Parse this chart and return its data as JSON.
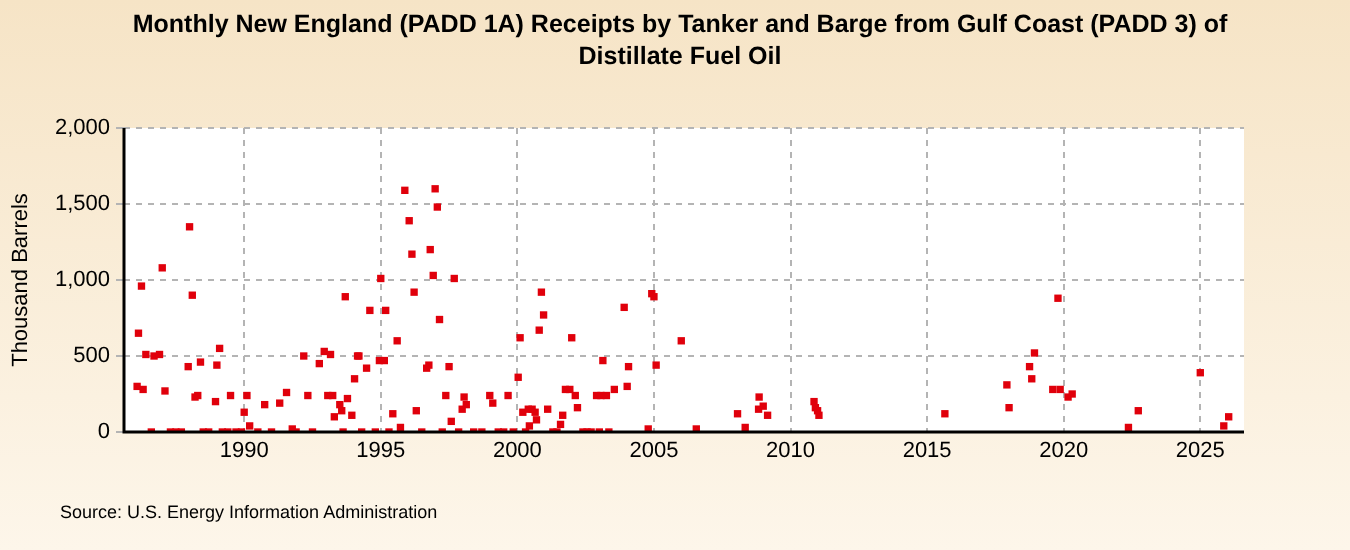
{
  "chart_data": {
    "type": "scatter",
    "title": "Monthly New England (PADD 1A) Receipts by Tanker and Barge from Gulf Coast (PADD 3) of Distillate Fuel Oil",
    "ylabel": "Thousand Barrels",
    "annotations": [
      "Source: U.S. Energy Information Administration"
    ],
    "series": [
      {
        "color": "#e0000b",
        "x": [
          1986.08,
          1986.13,
          1986.24,
          1986.3,
          1986.4,
          1986.6,
          1986.7,
          1986.9,
          1987.0,
          1987.1,
          1987.3,
          1987.5,
          1987.7,
          1987.95,
          1988.0,
          1988.1,
          1988.2,
          1988.3,
          1988.4,
          1988.5,
          1988.7,
          1988.95,
          1989.0,
          1989.1,
          1989.2,
          1989.4,
          1989.5,
          1989.7,
          1989.9,
          1990.0,
          1990.1,
          1990.2,
          1990.5,
          1990.75,
          1991.0,
          1991.3,
          1991.55,
          1991.76,
          1991.9,
          1992.18,
          1992.33,
          1992.5,
          1992.75,
          1992.93,
          1993.06,
          1993.16,
          1993.24,
          1993.3,
          1993.5,
          1993.57,
          1993.62,
          1993.7,
          1993.78,
          1993.94,
          1994.04,
          1994.15,
          1994.2,
          1994.3,
          1994.48,
          1994.6,
          1994.8,
          1994.95,
          1995.0,
          1995.13,
          1995.18,
          1995.3,
          1995.44,
          1995.6,
          1995.72,
          1995.88,
          1996.04,
          1996.14,
          1996.22,
          1996.3,
          1996.5,
          1996.68,
          1996.76,
          1996.81,
          1996.92,
          1996.99,
          1997.07,
          1997.15,
          1997.25,
          1997.38,
          1997.5,
          1997.58,
          1997.69,
          1997.85,
          1997.98,
          1998.05,
          1998.13,
          1998.4,
          1998.7,
          1998.99,
          1999.1,
          1999.3,
          1999.5,
          1999.66,
          1999.85,
          2000.03,
          2000.1,
          2000.2,
          2000.3,
          2000.4,
          2000.44,
          2000.54,
          2000.65,
          2000.7,
          2000.8,
          2000.88,
          2000.96,
          2001.11,
          2001.3,
          2001.45,
          2001.58,
          2001.66,
          2001.76,
          2001.92,
          2001.99,
          2002.12,
          2002.2,
          2002.4,
          2002.55,
          2002.7,
          2002.9,
          2003.0,
          2003.06,
          2003.13,
          2003.26,
          2003.35,
          2003.55,
          2003.91,
          2004.02,
          2004.07,
          2004.79,
          2004.92,
          2005.0,
          2005.08,
          2006.0,
          2006.55,
          2008.06,
          2008.34,
          2008.83,
          2008.85,
          2009.0,
          2009.16,
          2010.86,
          2010.91,
          2010.99,
          2011.04,
          2015.65,
          2017.92,
          2018.0,
          2018.75,
          2018.83,
          2018.93,
          2019.6,
          2019.79,
          2019.87,
          2020.16,
          2020.31,
          2022.37,
          2022.73,
          2025.0,
          2025.86,
          2026.04
        ],
        "values": [
          300,
          650,
          960,
          280,
          510,
          0,
          500,
          510,
          1080,
          270,
          0,
          0,
          0,
          430,
          1350,
          900,
          230,
          240,
          460,
          0,
          0,
          200,
          440,
          550,
          0,
          0,
          240,
          0,
          0,
          130,
          240,
          40,
          0,
          180,
          0,
          190,
          260,
          20,
          0,
          500,
          240,
          0,
          450,
          530,
          240,
          510,
          240,
          100,
          180,
          140,
          0,
          890,
          220,
          110,
          350,
          500,
          500,
          0,
          420,
          800,
          0,
          470,
          1010,
          470,
          800,
          0,
          120,
          600,
          30,
          1590,
          1390,
          1170,
          920,
          140,
          0,
          420,
          440,
          1200,
          1030,
          1600,
          1480,
          740,
          0,
          240,
          430,
          70,
          1010,
          0,
          150,
          230,
          180,
          0,
          0,
          240,
          190,
          0,
          0,
          240,
          0,
          360,
          620,
          130,
          0,
          150,
          40,
          150,
          130,
          80,
          670,
          920,
          770,
          150,
          0,
          0,
          50,
          110,
          280,
          280,
          620,
          240,
          160,
          0,
          0,
          0,
          240,
          0,
          240,
          470,
          240,
          0,
          280,
          820,
          300,
          430,
          20,
          910,
          890,
          440,
          600,
          20,
          120,
          30,
          150,
          230,
          170,
          110,
          200,
          160,
          140,
          110,
          120,
          310,
          160,
          430,
          350,
          520,
          280,
          880,
          280,
          230,
          250,
          30,
          140,
          390,
          40,
          100
        ]
      }
    ],
    "xlim": [
      1985.6,
      2026.6
    ],
    "xticks": [
      1990,
      1995,
      2000,
      2005,
      2010,
      2015,
      2020,
      2025
    ],
    "ylim": [
      0,
      2000
    ],
    "yticks": [
      0,
      {
        "value": 500,
        "label": "500"
      },
      {
        "value": 1000,
        "label": "1,000"
      },
      {
        "value": 1500,
        "label": "1,500"
      },
      {
        "value": 2000,
        "label": "2,000"
      }
    ],
    "grid": true,
    "marker": "square",
    "legend": false
  }
}
